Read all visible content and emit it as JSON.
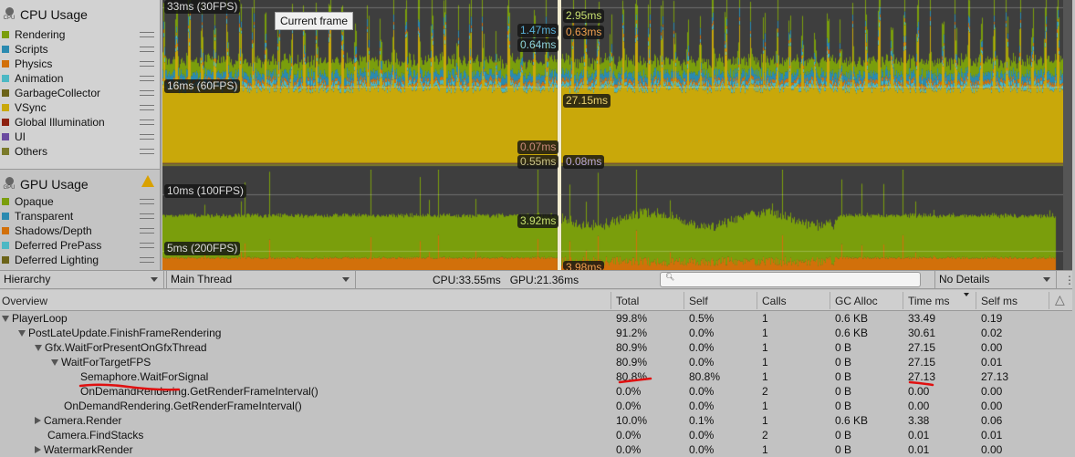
{
  "cpu": {
    "title": "CPU Usage",
    "icon_text": "CPU",
    "legend": [
      {
        "label": "Rendering",
        "color": "#7a9e0c"
      },
      {
        "label": "Scripts",
        "color": "#2a8ab0"
      },
      {
        "label": "Physics",
        "color": "#d2700a"
      },
      {
        "label": "Animation",
        "color": "#4cb8c4"
      },
      {
        "label": "GarbageCollector",
        "color": "#6b6318"
      },
      {
        "label": "VSync",
        "color": "#c9a80a"
      },
      {
        "label": "Global Illumination",
        "color": "#8c2010"
      },
      {
        "label": "UI",
        "color": "#6a4aa0"
      },
      {
        "label": "Others",
        "color": "#7a7a2a"
      }
    ],
    "gridlines": [
      "33ms (30FPS)",
      "16ms (60FPS)"
    ],
    "tooltip": "Current frame",
    "frame_values": {
      "left": [
        "1.47ms",
        "0.64ms",
        "0.07ms",
        "0.55ms"
      ],
      "right": [
        "2.95ms",
        "0.63ms",
        "27.15ms",
        "0.08ms"
      ]
    }
  },
  "gpu": {
    "title": "GPU Usage",
    "icon_text": "GPU",
    "warning_icon": "warning-icon",
    "legend": [
      {
        "label": "Opaque",
        "color": "#7a9e0c"
      },
      {
        "label": "Transparent",
        "color": "#2a8ab0"
      },
      {
        "label": "Shadows/Depth",
        "color": "#d2700a"
      },
      {
        "label": "Deferred PrePass",
        "color": "#4cb8c4"
      },
      {
        "label": "Deferred Lighting",
        "color": "#6b6318"
      }
    ],
    "gridlines": [
      "10ms (100FPS)",
      "5ms (200FPS)"
    ],
    "frame_values": [
      "3.92ms",
      "3.98ms"
    ]
  },
  "toolbar": {
    "view": "Hierarchy",
    "thread": "Main Thread",
    "cpu": "CPU:33.55ms",
    "gpu": "GPU:21.36ms",
    "search_placeholder": "",
    "details": "No Details"
  },
  "table": {
    "columns": [
      "Overview",
      "Total",
      "Self",
      "Calls",
      "GC Alloc",
      "Time ms",
      "Self ms"
    ],
    "rows": [
      {
        "name": "PlayerLoop",
        "indent": 0,
        "expand": "open",
        "total": "99.8%",
        "self": "0.5%",
        "calls": "1",
        "gc": "0.6 KB",
        "time": "33.49",
        "selfms": "0.19"
      },
      {
        "name": "PostLateUpdate.FinishFrameRendering",
        "indent": 1,
        "expand": "open",
        "total": "91.2%",
        "self": "0.0%",
        "calls": "1",
        "gc": "0.6 KB",
        "time": "30.61",
        "selfms": "0.02"
      },
      {
        "name": "Gfx.WaitForPresentOnGfxThread",
        "indent": 2,
        "expand": "open",
        "total": "80.9%",
        "self": "0.0%",
        "calls": "1",
        "gc": "0 B",
        "time": "27.15",
        "selfms": "0.00"
      },
      {
        "name": "WaitForTargetFPS",
        "indent": 3,
        "expand": "open",
        "total": "80.9%",
        "self": "0.0%",
        "calls": "1",
        "gc": "0 B",
        "time": "27.15",
        "selfms": "0.01"
      },
      {
        "name": "Semaphore.WaitForSignal",
        "indent": 4,
        "expand": "none",
        "total": "80.8%",
        "self": "80.8%",
        "calls": "1",
        "gc": "0 B",
        "time": "27.13",
        "selfms": "27.13"
      },
      {
        "name": "OnDemandRendering.GetRenderFrameInterval()",
        "indent": 4,
        "expand": "none",
        "total": "0.0%",
        "self": "0.0%",
        "calls": "2",
        "gc": "0 B",
        "time": "0.00",
        "selfms": "0.00"
      },
      {
        "name": "OnDemandRendering.GetRenderFrameInterval()",
        "indent": 3,
        "expand": "none",
        "total": "0.0%",
        "self": "0.0%",
        "calls": "1",
        "gc": "0 B",
        "time": "0.00",
        "selfms": "0.00"
      },
      {
        "name": "Camera.Render",
        "indent": 2,
        "expand": "closed",
        "total": "10.0%",
        "self": "0.1%",
        "calls": "1",
        "gc": "0.6 KB",
        "time": "3.38",
        "selfms": "0.06"
      },
      {
        "name": "Camera.FindStacks",
        "indent": 2,
        "expand": "none",
        "total": "0.0%",
        "self": "0.0%",
        "calls": "2",
        "gc": "0 B",
        "time": "0.01",
        "selfms": "0.01"
      },
      {
        "name": "WatermarkRender",
        "indent": 2,
        "expand": "closed",
        "total": "0.0%",
        "self": "0.0%",
        "calls": "1",
        "gc": "0 B",
        "time": "0.01",
        "selfms": "0.00"
      }
    ]
  },
  "annotation_color": "#e01010"
}
